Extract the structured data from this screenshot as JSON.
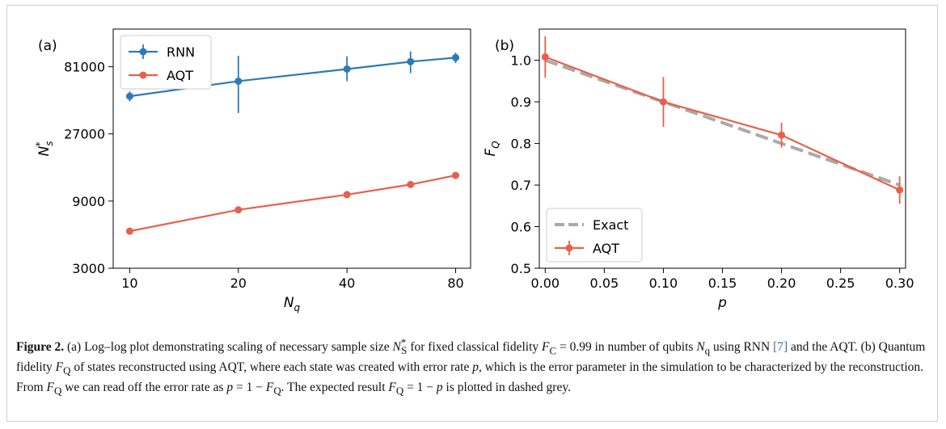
{
  "figure": {
    "caption_label": "Figure 2.",
    "caption_parts": {
      "a": " (a) Log–log plot demonstrating scaling of necessary sample size ",
      "ns": "N",
      "ns_sub": "S",
      "ns_sup": "*",
      "b": " for fixed classical fidelity ",
      "fc": "F",
      "fc_sub": "C",
      "c": " = 0.99 in number of qubits ",
      "nq": "N",
      "nq_sub": "q",
      "d": " using RNN ",
      "ref": "[7]",
      "e": " and the AQT. (b) Quantum fidelity ",
      "fq": "F",
      "fq_sub": "Q",
      "f": " of states reconstructed using AQT, where each state was created with error rate ",
      "p1": "p",
      "g": ", which is the error parameter in the simulation to be characterized by the reconstruction. From ",
      "fq2": "F",
      "fq2_sub": "Q",
      "h": " we can read off the error rate as ",
      "p2": "p",
      "i": " = 1 − ",
      "fq3": "F",
      "fq3_sub": "Q",
      "j": ". The expected result ",
      "fq4": "F",
      "fq4_sub": "Q",
      "k": " = 1 − ",
      "p3": "p",
      "l": " is plotted in dashed grey."
    }
  },
  "chart_data": [
    {
      "panel": "(a)",
      "type": "line",
      "xscale": "log",
      "yscale": "log",
      "xlabel": "N_q",
      "ylabel": "N_s^*",
      "xticks": [
        10,
        20,
        40,
        80
      ],
      "xtick_labels": [
        "10",
        "20",
        "40",
        "80"
      ],
      "yticks": [
        3000,
        9000,
        27000,
        81000
      ],
      "ytick_labels": [
        "3000",
        "9000",
        "27000",
        "81000"
      ],
      "xlim": [
        9.0,
        88.0
      ],
      "ylim": [
        3000,
        150000
      ],
      "legend_position": "upper-left",
      "series": [
        {
          "name": "RNN",
          "color": "#2c7bb6",
          "x": [
            10,
            20,
            40,
            60,
            80
          ],
          "y": [
            50000,
            64000,
            78000,
            88000,
            94000
          ],
          "yerr_low": [
            46000,
            38000,
            64000,
            73000,
            86000
          ],
          "yerr_high": [
            54000,
            97000,
            96000,
            104000,
            102000
          ]
        },
        {
          "name": "AQT",
          "color": "#e8604c",
          "x": [
            10,
            20,
            40,
            60,
            80
          ],
          "y": [
            5500,
            7800,
            10000,
            11800,
            13700
          ],
          "yerr_low": [
            5500,
            7800,
            10000,
            11800,
            13700
          ],
          "yerr_high": [
            5500,
            7800,
            10000,
            11800,
            13700
          ]
        }
      ]
    },
    {
      "panel": "(b)",
      "type": "line",
      "xlabel": "p",
      "ylabel": "F_Q",
      "xticks": [
        0.0,
        0.05,
        0.1,
        0.15,
        0.2,
        0.25,
        0.3
      ],
      "xtick_labels": [
        "0.00",
        "0.05",
        "0.10",
        "0.15",
        "0.20",
        "0.25",
        "0.30"
      ],
      "yticks": [
        0.5,
        0.6,
        0.7,
        0.8,
        0.9,
        1.0
      ],
      "ytick_labels": [
        "0.5",
        "0.6",
        "0.7",
        "0.8",
        "0.9",
        "1.0"
      ],
      "xlim": [
        -0.005,
        0.305
      ],
      "ylim": [
        0.5,
        1.075
      ],
      "legend_position": "lower-left",
      "series": [
        {
          "name": "Exact",
          "color": "#aaaaaa",
          "style": "dashed",
          "x": [
            0.0,
            0.3
          ],
          "y": [
            1.0,
            0.7
          ]
        },
        {
          "name": "AQT",
          "color": "#e8604c",
          "x": [
            0.0,
            0.1,
            0.2,
            0.3
          ],
          "y": [
            1.008,
            0.9,
            0.82,
            0.688
          ],
          "yerr": [
            0.05,
            0.06,
            0.03,
            0.033
          ]
        }
      ]
    }
  ]
}
